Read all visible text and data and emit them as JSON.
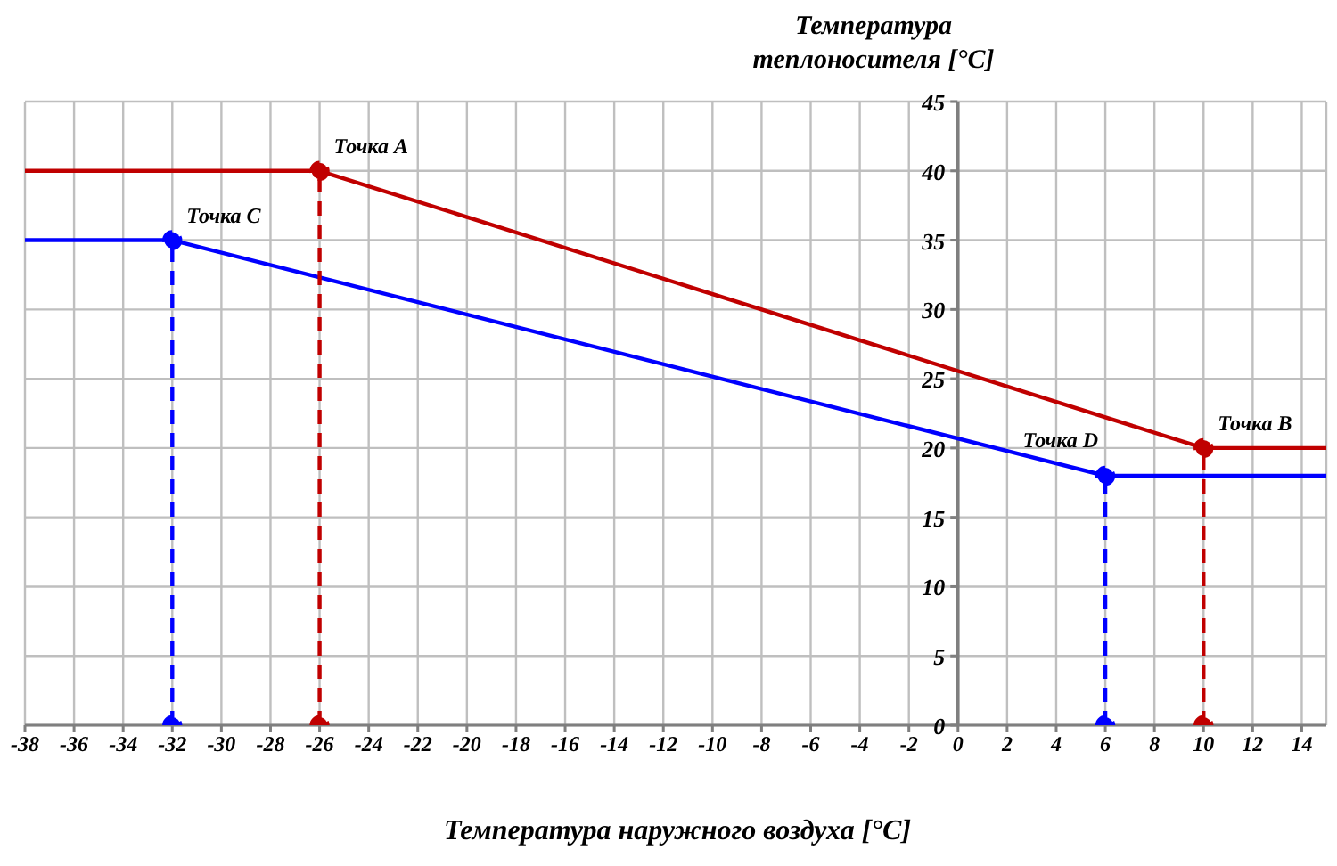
{
  "chart_data": {
    "type": "line",
    "xlabel": "Температура наружного воздуха [°C]",
    "ylabel": "Температура теплоносителя [°C]",
    "xlim": [
      -38,
      15
    ],
    "xticks": [
      -38,
      -36,
      -34,
      -32,
      -30,
      -28,
      -26,
      -24,
      -22,
      -20,
      -18,
      -16,
      -14,
      -12,
      -10,
      -8,
      -6,
      -4,
      -2,
      0,
      2,
      4,
      6,
      8,
      10,
      12,
      14
    ],
    "ylim": [
      0,
      45
    ],
    "yticks": [
      0,
      5,
      10,
      15,
      20,
      25,
      30,
      35,
      40,
      45
    ],
    "grid": true,
    "line_style": "solid",
    "series": [
      {
        "color": "#c00000",
        "x": [
          -38,
          -26,
          10,
          15
        ],
        "values": [
          40,
          40,
          20,
          20
        ]
      },
      {
        "color": "#0000ff",
        "x": [
          -38,
          -32,
          6,
          15
        ],
        "values": [
          35,
          35,
          18,
          18
        ]
      },
      {
        "color": "#c00000",
        "x": [
          -26,
          -26
        ],
        "values": [
          0,
          40
        ],
        "line_style": "dashed",
        "marker": "circle"
      },
      {
        "color": "#c00000",
        "x": [
          10,
          10
        ],
        "values": [
          0,
          20
        ],
        "line_style": "dashed",
        "marker": "circle"
      },
      {
        "color": "#0000ff",
        "x": [
          -32,
          -32
        ],
        "values": [
          0,
          35
        ],
        "line_style": "dashed",
        "marker": "circle"
      },
      {
        "color": "#0000ff",
        "x": [
          6,
          6
        ],
        "values": [
          0,
          18
        ],
        "line_style": "dashed",
        "marker": "circle"
      }
    ],
    "annotations": [
      {
        "text": "Точка A",
        "x": -26,
        "y": 40
      },
      {
        "text": "Точка B",
        "x": 10,
        "y": 20
      },
      {
        "text": "Точка C",
        "x": -32,
        "y": 35
      },
      {
        "text": "Точка D",
        "x": 6,
        "y": 18
      }
    ]
  }
}
